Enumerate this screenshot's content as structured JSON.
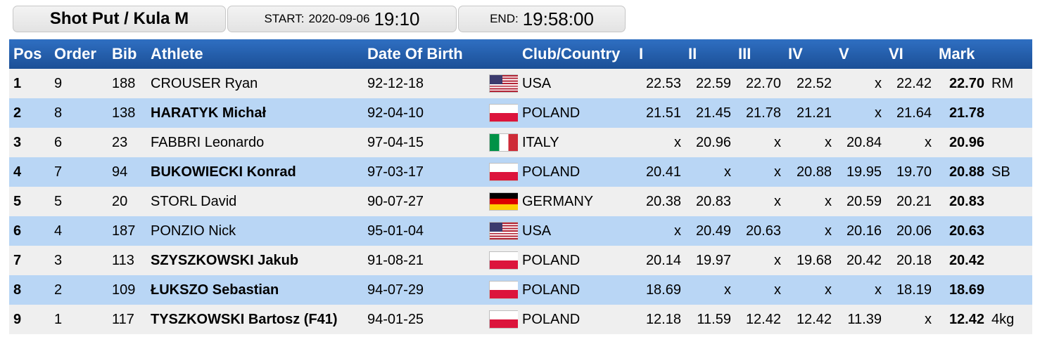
{
  "event": {
    "title": "Shot Put / Kula M",
    "start_label": "START:",
    "start_date": "2020-09-06",
    "start_time": "19:10",
    "end_label": "END:",
    "end_time": "19:58:00"
  },
  "columns": [
    "Pos",
    "Order",
    "Bib",
    "Athlete",
    "Date Of Birth",
    "",
    "Club/Country",
    "I",
    "II",
    "III",
    "IV",
    "V",
    "VI",
    "Mark",
    ""
  ],
  "rows": [
    {
      "pos": "1",
      "order": "9",
      "bib": "188",
      "athlete": "CROUSER Ryan",
      "bold": false,
      "dob": "92-12-18",
      "flag": "usa",
      "country": "USA",
      "attempts": [
        "22.53",
        "22.59",
        "22.70",
        "22.52",
        "x",
        "22.42"
      ],
      "mark": "22.70",
      "note": "RM"
    },
    {
      "pos": "2",
      "order": "8",
      "bib": "138",
      "athlete": "HARATYK Michał",
      "bold": true,
      "dob": "92-04-10",
      "flag": "poland",
      "country": "POLAND",
      "attempts": [
        "21.51",
        "21.45",
        "21.78",
        "21.21",
        "x",
        "21.64"
      ],
      "mark": "21.78",
      "note": ""
    },
    {
      "pos": "3",
      "order": "6",
      "bib": "23",
      "athlete": "FABBRI Leonardo",
      "bold": false,
      "dob": "97-04-15",
      "flag": "italy",
      "country": "ITALY",
      "attempts": [
        "x",
        "20.96",
        "x",
        "x",
        "20.84",
        "x"
      ],
      "mark": "20.96",
      "note": ""
    },
    {
      "pos": "4",
      "order": "7",
      "bib": "94",
      "athlete": "BUKOWIECKI Konrad",
      "bold": true,
      "dob": "97-03-17",
      "flag": "poland",
      "country": "POLAND",
      "attempts": [
        "20.41",
        "x",
        "x",
        "20.88",
        "19.95",
        "19.70"
      ],
      "mark": "20.88",
      "note": "SB"
    },
    {
      "pos": "5",
      "order": "5",
      "bib": "20",
      "athlete": "STORL David",
      "bold": false,
      "dob": "90-07-27",
      "flag": "germany",
      "country": "GERMANY",
      "attempts": [
        "20.38",
        "20.83",
        "x",
        "x",
        "20.59",
        "20.21"
      ],
      "mark": "20.83",
      "note": ""
    },
    {
      "pos": "6",
      "order": "4",
      "bib": "187",
      "athlete": "PONZIO Nick",
      "bold": false,
      "dob": "95-01-04",
      "flag": "usa",
      "country": "USA",
      "attempts": [
        "x",
        "20.49",
        "20.63",
        "x",
        "20.16",
        "20.06"
      ],
      "mark": "20.63",
      "note": ""
    },
    {
      "pos": "7",
      "order": "3",
      "bib": "113",
      "athlete": "SZYSZKOWSKI Jakub",
      "bold": true,
      "dob": "91-08-21",
      "flag": "poland",
      "country": "POLAND",
      "attempts": [
        "20.14",
        "19.97",
        "x",
        "19.68",
        "20.42",
        "20.18"
      ],
      "mark": "20.42",
      "note": ""
    },
    {
      "pos": "8",
      "order": "2",
      "bib": "109",
      "athlete": "ŁUKSZO Sebastian",
      "bold": true,
      "dob": "94-07-29",
      "flag": "poland",
      "country": "POLAND",
      "attempts": [
        "18.69",
        "x",
        "x",
        "x",
        "x",
        "18.19"
      ],
      "mark": "18.69",
      "note": ""
    },
    {
      "pos": "9",
      "order": "1",
      "bib": "117",
      "athlete": "TYSZKOWSKI Bartosz (F41)",
      "bold": true,
      "dob": "94-01-25",
      "flag": "poland",
      "country": "POLAND",
      "attempts": [
        "12.18",
        "11.59",
        "12.42",
        "12.42",
        "11.39",
        "x"
      ],
      "mark": "12.42",
      "note": "4kg"
    }
  ]
}
